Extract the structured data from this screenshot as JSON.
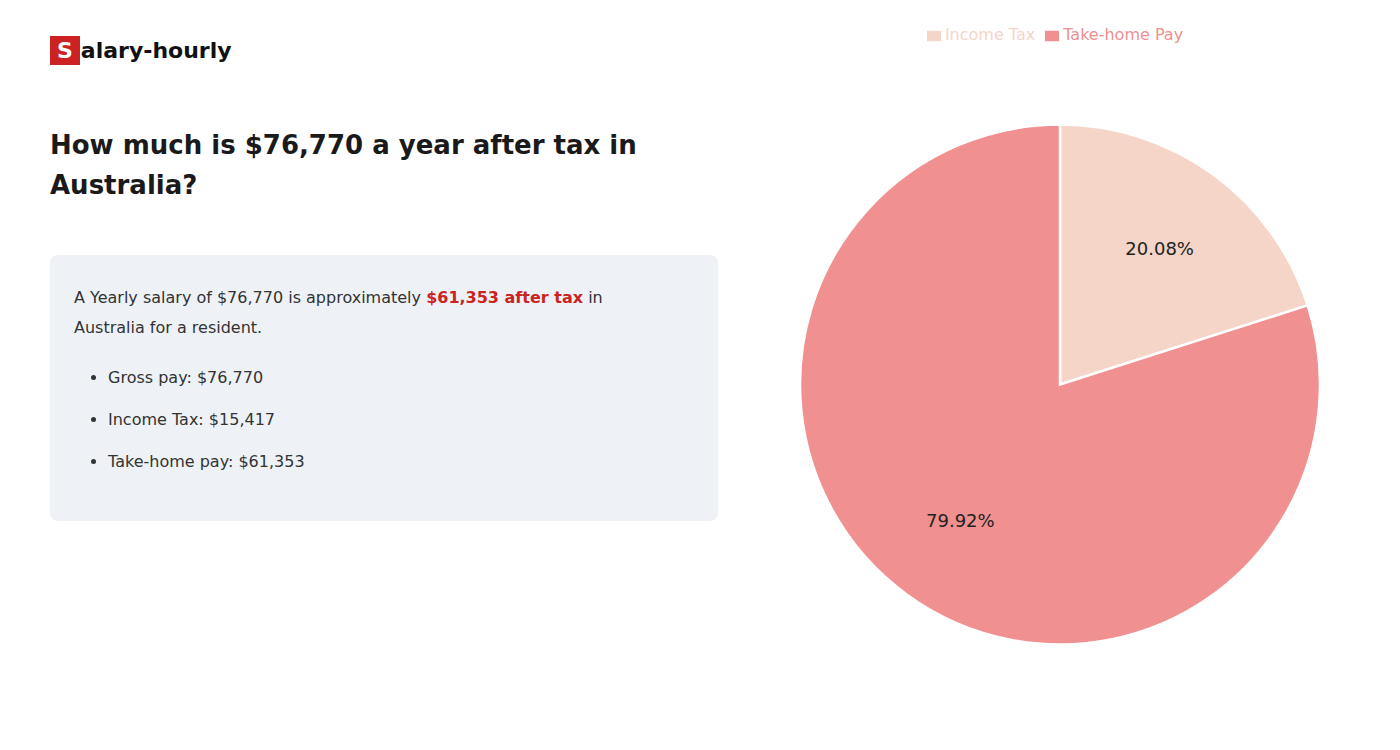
{
  "chart_data": {
    "type": "pie",
    "title": [
      "How much is $76,770 a year after tax in",
      "Australia?"
    ],
    "annotations": [
      [
        {
          "text": "S",
          "color": "#cc2222"
        },
        {
          "text": "alary-hourly"
        }
      ],
      [
        {
          "text": "A Yearly salary of $76,770 is approximately "
        },
        {
          "text": "$61,353 after tax",
          "color": "#cc2222"
        },
        {
          "text": " in"
        }
      ],
      [
        {
          "text": "Australia for a resident."
        }
      ],
      [
        {
          "text": "Gross pay: $76,770"
        }
      ],
      [
        {
          "text": "Income Tax: $15,417"
        }
      ],
      [
        {
          "text": "Take-home pay: $61,353"
        }
      ]
    ],
    "categories": [
      "Income Tax",
      "Take-home Pay"
    ],
    "values": [
      20.08,
      79.92
    ],
    "value_labels": [
      "20.08%",
      "79.92%"
    ],
    "colors": [
      "#f5d5c8",
      "#f09090"
    ],
    "data_labels": true,
    "legend": "top"
  }
}
